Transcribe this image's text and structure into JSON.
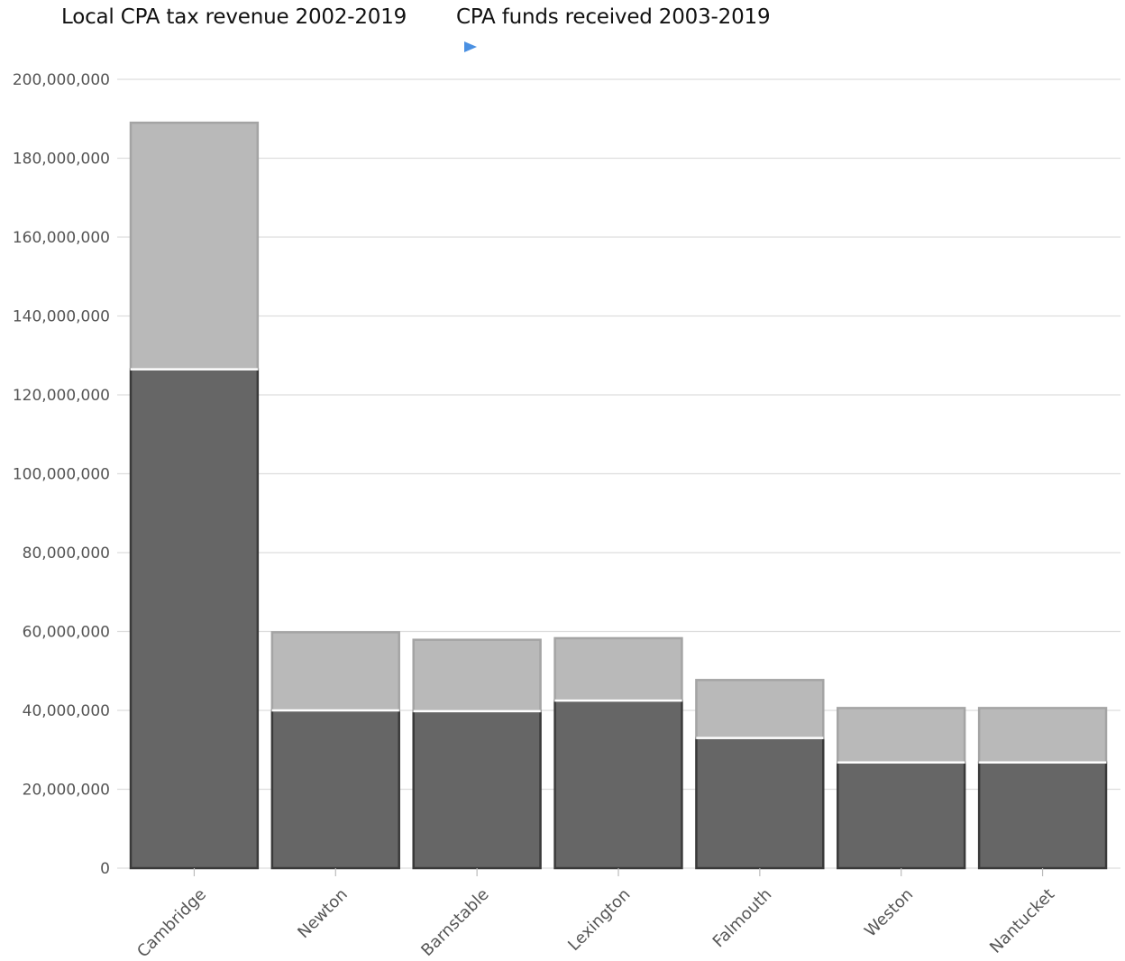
{
  "legend": {
    "items": [
      {
        "label": "Local CPA tax revenue 2002-2019",
        "color": "#666666"
      },
      {
        "label": "CPA funds received 2003-2019",
        "color": "#b9b9b9"
      }
    ],
    "marker_color": "#4a90e2"
  },
  "chart_data": {
    "type": "bar",
    "stacked": true,
    "categories": [
      "Cambridge",
      "Newton",
      "Barnstable",
      "Lexington",
      "Falmouth",
      "Weston",
      "Nantucket"
    ],
    "series": [
      {
        "name": "Local CPA tax revenue 2002-2019",
        "color": "#666666",
        "values": [
          126500000,
          40000000,
          39800000,
          42500000,
          33000000,
          26800000,
          26800000
        ]
      },
      {
        "name": "CPA funds received 2003-2019",
        "color": "#b9b9b9",
        "values": [
          62500000,
          19800000,
          18100000,
          15800000,
          14700000,
          13800000,
          13800000
        ]
      }
    ],
    "ylim": [
      0,
      200000000
    ],
    "yticks": [
      0,
      20000000,
      40000000,
      60000000,
      80000000,
      100000000,
      120000000,
      140000000,
      160000000,
      180000000,
      200000000
    ],
    "ytick_labels": [
      "0",
      "20,000,000",
      "40,000,000",
      "60,000,000",
      "80,000,000",
      "100,000,000",
      "120,000,000",
      "140,000,000",
      "160,000,000",
      "180,000,000",
      "200,000,000"
    ],
    "grid": true,
    "legend_position": "top-left",
    "xlabel": "",
    "ylabel": ""
  }
}
